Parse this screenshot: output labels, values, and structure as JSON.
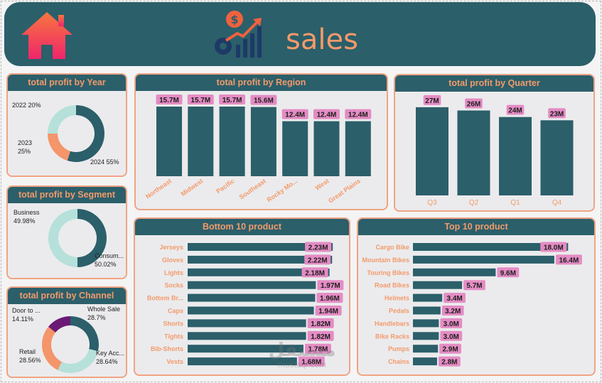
{
  "header": {
    "title": "sales",
    "home_icon": "home-icon",
    "sales_icon": "sales-growth-icon",
    "colors": {
      "bar": "#2b5f6a",
      "accent": "#f39a6b",
      "label_bg": "#e48cc4"
    }
  },
  "chart_data": [
    {
      "id": "year",
      "type": "pie",
      "title": "total profit by Year",
      "donut": true,
      "slices": [
        {
          "label": "2024",
          "value": 55,
          "display": "2024 55%",
          "color": "#2b5f6a"
        },
        {
          "label": "2022",
          "value": 20,
          "display": "2022 20%",
          "color": "#f4956a"
        },
        {
          "label": "2023",
          "value": 25,
          "display_lines": [
            "2023",
            "25%"
          ],
          "color": "#b6e0da"
        }
      ]
    },
    {
      "id": "segment",
      "type": "pie",
      "title": "total profit by Segment",
      "donut": true,
      "slices": [
        {
          "label": "Consumer",
          "value": 50.02,
          "display_lines": [
            "Consum...",
            "50.02%"
          ],
          "color": "#2b5f6a"
        },
        {
          "label": "Business",
          "value": 49.98,
          "display_lines": [
            "Business",
            "49.98%"
          ],
          "color": "#b6e0da"
        }
      ]
    },
    {
      "id": "channel",
      "type": "pie",
      "title": "total profit by Channel",
      "donut": true,
      "slices": [
        {
          "label": "Whole Sale",
          "value": 28.7,
          "display_lines": [
            "Whole Sale",
            "28.7%"
          ],
          "color": "#2b5f6a"
        },
        {
          "label": "Key Accounts",
          "value": 28.64,
          "display_lines": [
            "Key Acc...",
            "28.64%"
          ],
          "color": "#b6e0da"
        },
        {
          "label": "Retail",
          "value": 28.56,
          "display_lines": [
            "Retail",
            "28.56%"
          ],
          "color": "#f4956a"
        },
        {
          "label": "Door to Door",
          "value": 14.11,
          "display_lines": [
            "Door to ...",
            "14.11%"
          ],
          "color": "#6a1a74"
        }
      ]
    },
    {
      "id": "region",
      "type": "bar",
      "title": "total profit by Region",
      "unit": "M",
      "categories": [
        "Northeast",
        "Midwest",
        "Pacific",
        "Southeast",
        "Rocky Mo...",
        "West",
        "Great Plains"
      ],
      "values": [
        15.7,
        15.7,
        15.7,
        15.6,
        12.4,
        12.4,
        12.4
      ],
      "labels": [
        "15.7M",
        "15.7M",
        "15.7M",
        "15.6M",
        "12.4M",
        "12.4M",
        "12.4M"
      ],
      "ylim": [
        0,
        16.5
      ]
    },
    {
      "id": "quarter",
      "type": "bar",
      "title": "total profit by Quarter",
      "unit": "M",
      "categories": [
        "Q3",
        "Q2",
        "Q1",
        "Q4"
      ],
      "values": [
        27,
        26,
        24,
        23
      ],
      "labels": [
        "27M",
        "26M",
        "24M",
        "23M"
      ],
      "ylim": [
        0,
        28.5
      ]
    },
    {
      "id": "bottom10",
      "type": "bar",
      "orientation": "horizontal",
      "title": "Bottom 10 product",
      "unit": "M",
      "categories": [
        "Jerseys",
        "Gloves",
        "Lights",
        "Socks",
        "Bottom Br...",
        "Caps",
        "Shorts",
        "Tights",
        "Bib-Shorts",
        "Vests"
      ],
      "values": [
        2.23,
        2.22,
        2.18,
        1.97,
        1.96,
        1.94,
        1.82,
        1.82,
        1.78,
        1.68
      ],
      "labels": [
        "2.23M",
        "2.22M",
        "2.18M",
        "1.97M",
        "1.96M",
        "1.94M",
        "1.82M",
        "1.82M",
        "1.78M",
        "1.68M"
      ],
      "xlim": [
        0,
        2.25
      ]
    },
    {
      "id": "top10",
      "type": "bar",
      "orientation": "horizontal",
      "title": "Top 10 product",
      "unit": "M",
      "categories": [
        "Cargo Bike",
        "Mountain Bikes",
        "Touring Bikes",
        "Road Bikes",
        "Helmets",
        "Pedals",
        "Handlebars",
        "Bike Racks",
        "Pumps",
        "Chains"
      ],
      "values": [
        18.0,
        16.4,
        9.6,
        5.7,
        3.4,
        3.2,
        3.0,
        3.0,
        2.9,
        2.8
      ],
      "labels": [
        "18.0M",
        "16.4M",
        "9.6M",
        "5.7M",
        "3.4M",
        "3.2M",
        "3.0M",
        "3.0M",
        "2.9M",
        "2.8M"
      ],
      "xlim": [
        0,
        18.8
      ]
    }
  ],
  "watermark": "mostaql.com"
}
